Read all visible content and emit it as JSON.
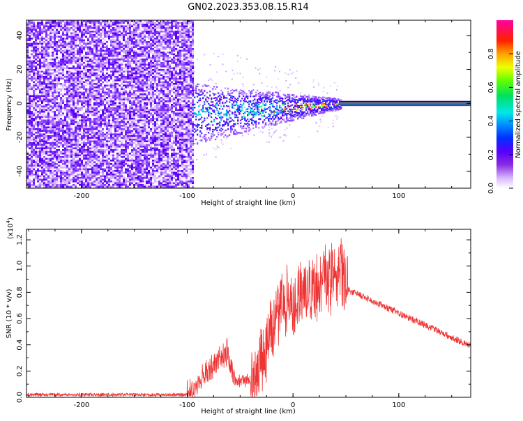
{
  "title": "GN02.2023.353.08.15.R14",
  "chart_data": [
    {
      "type": "heatmap",
      "xlabel": "Height of straight line (km)",
      "ylabel": "Frequency (Hz)",
      "xlim": [
        -252,
        168
      ],
      "ylim": [
        -50,
        49
      ],
      "xticks": [
        -200,
        -100,
        0,
        100
      ],
      "yticks": [
        -40,
        -20,
        0,
        20,
        40
      ],
      "colorbar": {
        "label": "Normalized spectral amplitude",
        "range": [
          0,
          1
        ],
        "ticks": [
          "0.0",
          "0.2",
          "0.4",
          "0.6",
          "0.8"
        ],
        "colormap": "rainbow (white-violet-blue-cyan-green-yellow-orange-red-magenta)"
      },
      "features": {
        "broadband_noise_x_range": [
          -252,
          -95
        ],
        "signal_band_x_range": [
          -95,
          45
        ],
        "narrow_line_x_range": [
          45,
          168
        ],
        "signal_frequency": 0
      }
    },
    {
      "type": "line",
      "xlabel": "Height of straight line (km)",
      "ylabel": "SNR (10 * v/v)",
      "y_multiplier": "(x10",
      "y_multiplier_exp": "4",
      "y_multiplier_close": ")",
      "xlim": [
        -252,
        168
      ],
      "ylim": [
        0,
        1.28
      ],
      "xticks": [
        -200,
        -100,
        0,
        100
      ],
      "yticks": [
        "0.0",
        "0.2",
        "0.4",
        "0.6",
        "0.8",
        "1.0",
        "1.2"
      ],
      "color": "#ee3333",
      "series_profile": [
        {
          "x": -252,
          "y": 0.02
        },
        {
          "x": -100,
          "y": 0.02
        },
        {
          "x": -90,
          "y": 0.1
        },
        {
          "x": -70,
          "y": 0.3
        },
        {
          "x": -62,
          "y": 0.34
        },
        {
          "x": -55,
          "y": 0.12
        },
        {
          "x": -40,
          "y": 0.13
        },
        {
          "x": -30,
          "y": 0.3
        },
        {
          "x": -18,
          "y": 0.55
        },
        {
          "x": -10,
          "y": 0.7
        },
        {
          "x": 0,
          "y": 0.72
        },
        {
          "x": 10,
          "y": 0.82
        },
        {
          "x": 20,
          "y": 0.8
        },
        {
          "x": 35,
          "y": 0.92
        },
        {
          "x": 48,
          "y": 0.95
        },
        {
          "x": 52,
          "y": 0.82
        },
        {
          "x": 168,
          "y": 0.39
        }
      ]
    }
  ]
}
